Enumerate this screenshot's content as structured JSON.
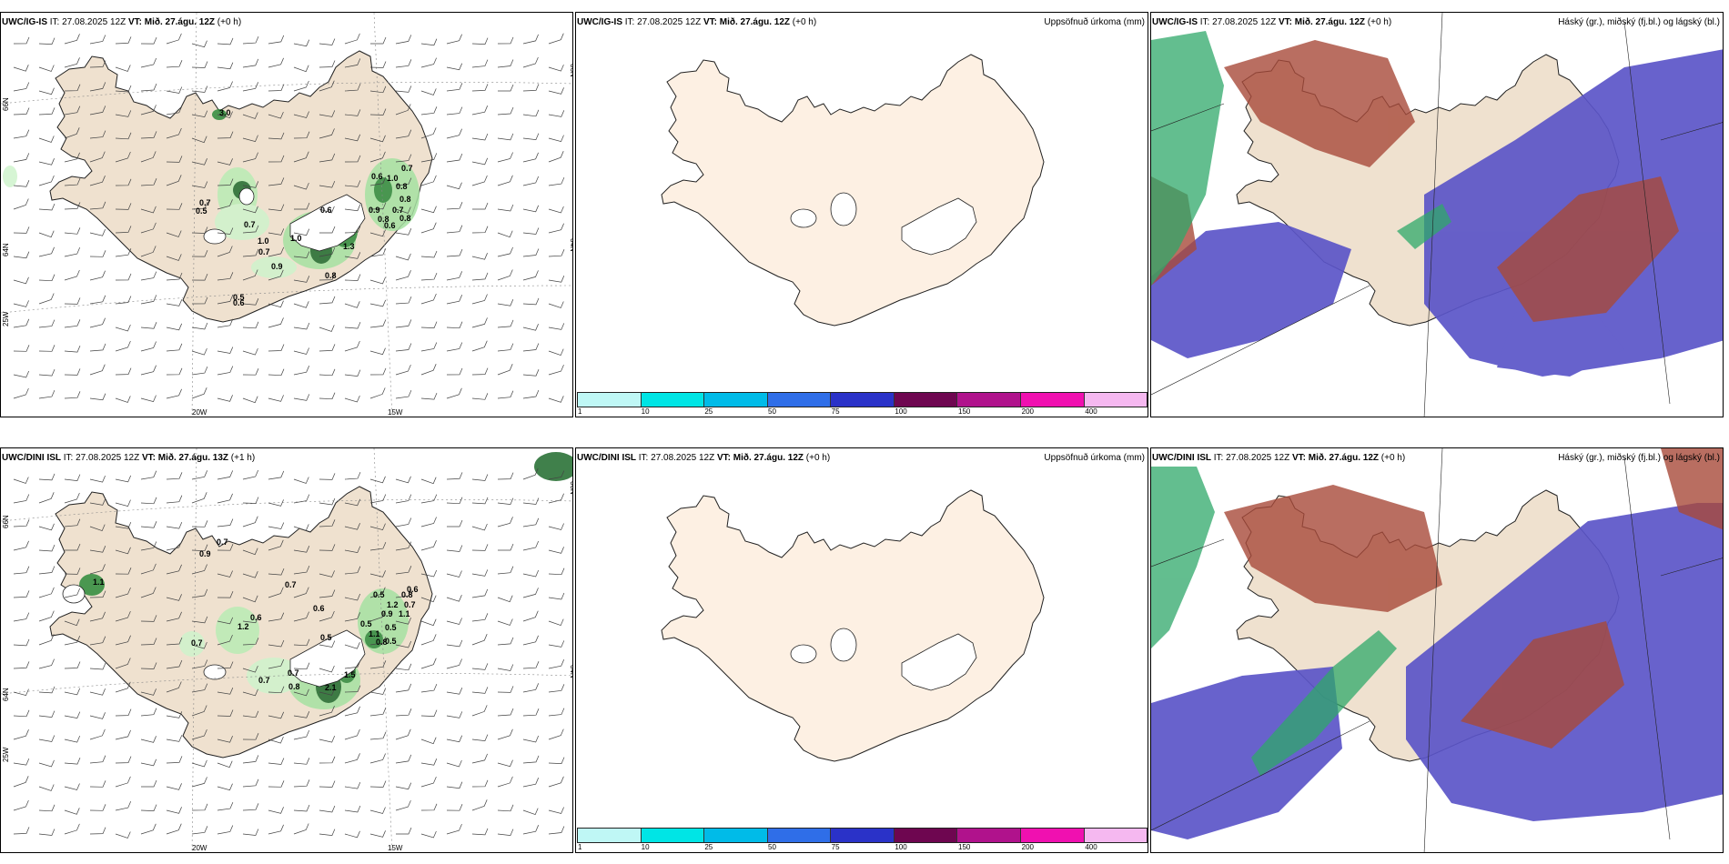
{
  "panels": [
    {
      "model": "UWC/IG-IS",
      "it": "IT: 27.08.2025 12Z",
      "vt_label": "VT:",
      "vt": "Mið. 27.águ. 12Z",
      "lead": "(+0 h)",
      "right": ""
    },
    {
      "model": "UWC/IG-IS",
      "it": "IT: 27.08.2025 12Z",
      "vt_label": "VT:",
      "vt": "Mið. 27.águ. 12Z",
      "lead": "(+0 h)",
      "right": "Uppsöfnuð úrkoma (mm)"
    },
    {
      "model": "UWC/IG-IS",
      "it": "IT: 27.08.2025 12Z",
      "vt_label": "VT:",
      "vt": "Mið. 27.águ. 12Z",
      "lead": "(+0 h)",
      "right": "Háský (gr.), miðský (fj.bl.) og lágský (bl.)"
    },
    {
      "model": "UWC/DINI ISL",
      "it": "IT: 27.08.2025 12Z",
      "vt_label": "VT:",
      "vt": "Mið. 27.águ. 13Z",
      "lead": "(+1 h)",
      "right": ""
    },
    {
      "model": "UWC/DINI ISL",
      "it": "IT: 27.08.2025 12Z",
      "vt_label": "VT:",
      "vt": "Mið. 27.águ. 12Z",
      "lead": "(+0 h)",
      "right": "Uppsöfnuð úrkoma (mm)"
    },
    {
      "model": "UWC/DINI ISL",
      "it": "IT: 27.08.2025 12Z",
      "vt_label": "VT:",
      "vt": "Mið. 27.águ. 12Z",
      "lead": "(+0 h)",
      "right": "Háský (gr.), miðský (fj.bl.) og lágský (bl.)"
    }
  ],
  "axis_labels": {
    "w20": "20W",
    "w15": "15W",
    "w25": "25W",
    "n66": "66N",
    "n64": "64N"
  },
  "colorbar": {
    "colors": [
      "#bff7f5",
      "#00e5e5",
      "#00bbe8",
      "#2f6ee8",
      "#2a32c8",
      "#6e0650",
      "#b0128c",
      "#f010b0",
      "#f5b8f0"
    ],
    "ticks": [
      "1",
      "10",
      "25",
      "50",
      "75",
      "100",
      "150",
      "200",
      "400"
    ]
  },
  "precip_values_top": [
    {
      "v": "3.0",
      "x": 240,
      "y": 113
    },
    {
      "v": "0.7",
      "x": 218,
      "y": 212
    },
    {
      "v": "0.5",
      "x": 214,
      "y": 221
    },
    {
      "v": "0.7",
      "x": 267,
      "y": 236
    },
    {
      "v": "1.0",
      "x": 282,
      "y": 254
    },
    {
      "v": "0.7",
      "x": 283,
      "y": 266
    },
    {
      "v": "0.9",
      "x": 297,
      "y": 282
    },
    {
      "v": "1.0",
      "x": 318,
      "y": 251
    },
    {
      "v": "0.6",
      "x": 351,
      "y": 220
    },
    {
      "v": "1.3",
      "x": 376,
      "y": 260
    },
    {
      "v": "0.8",
      "x": 356,
      "y": 292
    },
    {
      "v": "0.5",
      "x": 255,
      "y": 316
    },
    {
      "v": "0.6",
      "x": 255,
      "y": 322
    },
    {
      "v": "0.6",
      "x": 407,
      "y": 183
    },
    {
      "v": "1.0",
      "x": 424,
      "y": 185
    },
    {
      "v": "0.7",
      "x": 440,
      "y": 174
    },
    {
      "v": "0.8",
      "x": 434,
      "y": 194
    },
    {
      "v": "0.8",
      "x": 438,
      "y": 208
    },
    {
      "v": "0.7",
      "x": 430,
      "y": 220
    },
    {
      "v": "0.8",
      "x": 438,
      "y": 229
    },
    {
      "v": "0.9",
      "x": 404,
      "y": 220
    },
    {
      "v": "0.8",
      "x": 414,
      "y": 230
    },
    {
      "v": "0.6",
      "x": 421,
      "y": 237
    }
  ],
  "precip_values_bottom": [
    {
      "v": "0.7",
      "x": 237,
      "y": 106
    },
    {
      "v": "0.9",
      "x": 218,
      "y": 119
    },
    {
      "v": "1.1",
      "x": 101,
      "y": 150
    },
    {
      "v": "0.7",
      "x": 312,
      "y": 153
    },
    {
      "v": "0.6",
      "x": 343,
      "y": 179
    },
    {
      "v": "0.6",
      "x": 274,
      "y": 189
    },
    {
      "v": "1.2",
      "x": 260,
      "y": 199
    },
    {
      "v": "0.7",
      "x": 209,
      "y": 217
    },
    {
      "v": "0.5",
      "x": 351,
      "y": 211
    },
    {
      "v": "0.7",
      "x": 283,
      "y": 258
    },
    {
      "v": "0.7",
      "x": 315,
      "y": 250
    },
    {
      "v": "0.8",
      "x": 316,
      "y": 265
    },
    {
      "v": "2.1",
      "x": 356,
      "y": 266
    },
    {
      "v": "1.5",
      "x": 377,
      "y": 252
    },
    {
      "v": "0.5",
      "x": 395,
      "y": 196
    },
    {
      "v": "1.1",
      "x": 404,
      "y": 207
    },
    {
      "v": "0.8",
      "x": 412,
      "y": 216
    },
    {
      "v": "0.5",
      "x": 409,
      "y": 164
    },
    {
      "v": "1.2",
      "x": 424,
      "y": 175
    },
    {
      "v": "0.8",
      "x": 440,
      "y": 164
    },
    {
      "v": "0.6",
      "x": 446,
      "y": 158
    },
    {
      "v": "0.7",
      "x": 443,
      "y": 175
    },
    {
      "v": "0.9",
      "x": 418,
      "y": 185
    },
    {
      "v": "1.1",
      "x": 437,
      "y": 185
    },
    {
      "v": "0.5",
      "x": 422,
      "y": 200
    },
    {
      "v": "0.5",
      "x": 422,
      "y": 215
    }
  ]
}
